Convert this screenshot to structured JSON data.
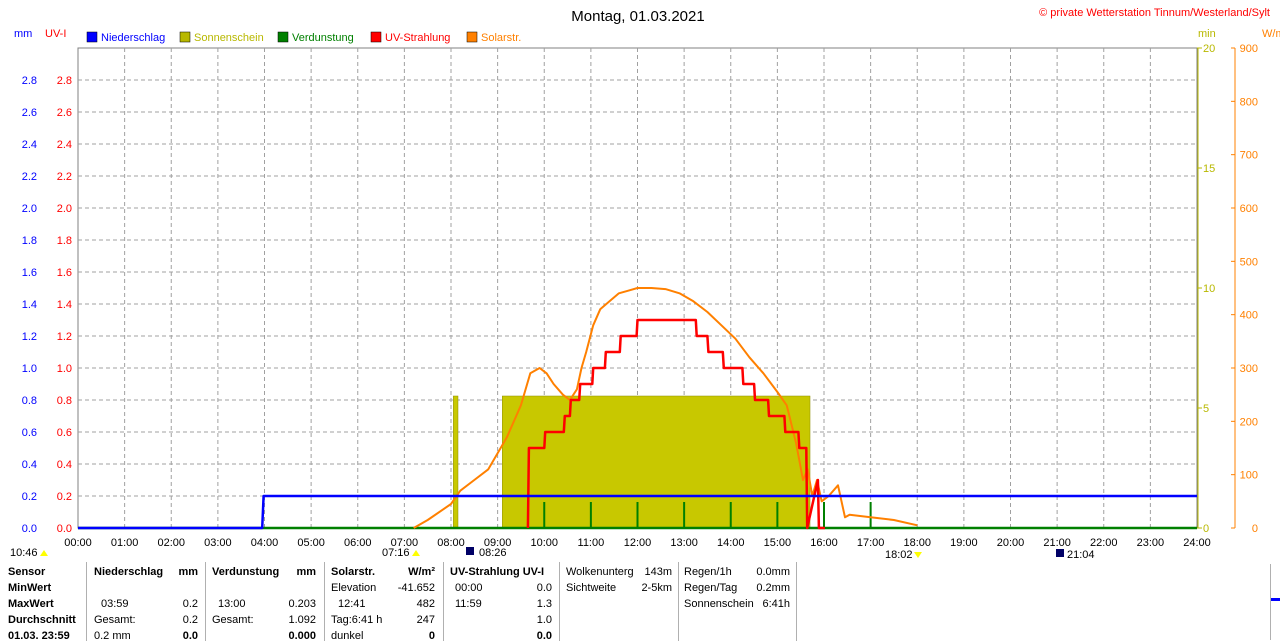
{
  "title": "Montag, 01.03.2021",
  "copyright": "© private Wetterstation Tinnum/Westerland/Sylt",
  "axis_units": {
    "mm": "mm",
    "uvi": "UV-I",
    "min": "min",
    "wm2": "W/m²"
  },
  "colors": {
    "blue": "#0000ff",
    "red": "#ff0000",
    "olive": "#b8b800",
    "orange": "#ff8000",
    "green": "#008000",
    "sun_fill": "#c8c800"
  },
  "chart_data": {
    "type": "line",
    "title": "Montag, 01.03.2021",
    "x_ticks": [
      "00:00",
      "01:00",
      "02:00",
      "03:00",
      "04:00",
      "05:00",
      "06:00",
      "07:00",
      "08:00",
      "09:00",
      "10:00",
      "11:00",
      "12:00",
      "13:00",
      "14:00",
      "15:00",
      "16:00",
      "17:00",
      "18:00",
      "19:00",
      "20:00",
      "21:00",
      "22:00",
      "23:00",
      "24:00"
    ],
    "xlim": [
      0,
      24
    ],
    "left_axis": {
      "label_mm": "mm",
      "label_uvi": "UV-I",
      "ylim": [
        0,
        3.0
      ],
      "ticks": [
        "0.0",
        "0.2",
        "0.4",
        "0.6",
        "0.8",
        "1.0",
        "1.2",
        "1.4",
        "1.6",
        "1.8",
        "2.0",
        "2.2",
        "2.4",
        "2.6",
        "2.8"
      ]
    },
    "right_axis_min": {
      "label": "min",
      "ylim": [
        0,
        20
      ],
      "ticks": [
        "0",
        "5",
        "10",
        "15",
        "20"
      ]
    },
    "right_axis_wm2": {
      "label": "W/m²",
      "ylim": [
        0,
        900
      ],
      "ticks": [
        "0",
        "100",
        "200",
        "300",
        "400",
        "500",
        "600",
        "700",
        "800",
        "900"
      ]
    },
    "legend": [
      "Niederschlag",
      "Sonnenschein",
      "Verdunstung",
      "UV-Strahlung",
      "Solarstr."
    ],
    "series": [
      {
        "name": "Niederschlag",
        "axis": "mm",
        "x": [
          0,
          3.95,
          3.98,
          24
        ],
        "y": [
          0,
          0,
          0.2,
          0.2
        ]
      },
      {
        "name": "UV-Strahlung",
        "axis": "uvi",
        "x": [
          9.65,
          9.67,
          10.0,
          10.02,
          10.42,
          10.44,
          10.55,
          10.57,
          10.75,
          10.77,
          11.03,
          11.05,
          11.3,
          11.32,
          11.62,
          11.64,
          11.98,
          12.0,
          13.25,
          13.27,
          13.5,
          13.52,
          13.83,
          13.85,
          14.25,
          14.27,
          14.5,
          14.52,
          14.8,
          14.82,
          15.15,
          15.17,
          15.45,
          15.47,
          15.62,
          15.64,
          15.87,
          15.89,
          16.0,
          16.02
        ],
        "y": [
          0,
          0.5,
          0.5,
          0.6,
          0.6,
          0.7,
          0.7,
          0.8,
          0.8,
          0.9,
          0.9,
          1.0,
          1.0,
          1.1,
          1.1,
          1.2,
          1.2,
          1.3,
          1.3,
          1.2,
          1.2,
          1.1,
          1.1,
          1.0,
          1.0,
          0.9,
          0.9,
          0.8,
          0.8,
          0.7,
          0.7,
          0.6,
          0.6,
          0.5,
          0.5,
          0.0,
          0.3,
          0.0,
          0.0,
          0.0
        ]
      },
      {
        "name": "Solarstr.",
        "axis": "wm2",
        "x": [
          7.2,
          7.5,
          8.0,
          8.2,
          8.5,
          8.8,
          9.0,
          9.2,
          9.5,
          9.7,
          9.9,
          10.05,
          10.2,
          10.4,
          10.55,
          10.7,
          10.8,
          10.9,
          11.05,
          11.2,
          11.4,
          11.6,
          11.8,
          12.0,
          12.3,
          12.6,
          12.9,
          13.2,
          13.5,
          13.8,
          14.1,
          14.4,
          14.7,
          15.0,
          15.2,
          15.4,
          15.55,
          15.65,
          15.75,
          15.85,
          15.95,
          16.1,
          16.3,
          16.45,
          16.55,
          17.0,
          17.5,
          18.0
        ],
        "y": [
          0,
          15,
          45,
          70,
          90,
          110,
          140,
          170,
          230,
          290,
          300,
          290,
          270,
          250,
          240,
          260,
          300,
          330,
          380,
          410,
          425,
          440,
          445,
          450,
          450,
          448,
          440,
          425,
          405,
          380,
          355,
          320,
          290,
          255,
          230,
          160,
          90,
          110,
          60,
          90,
          50,
          60,
          80,
          20,
          25,
          20,
          15,
          5
        ]
      },
      {
        "name": "Verdunstung",
        "axis": "mm",
        "x": [
          0,
          24
        ],
        "y": [
          0,
          0
        ]
      }
    ],
    "sunshine_bars": [
      {
        "x0": 8.05,
        "x1": 8.15,
        "min": 5.5
      },
      {
        "x0": 9.1,
        "x1": 15.7,
        "min": 5.5
      }
    ],
    "sunshine_tick_hours": [
      10.0,
      11.0,
      12.0,
      13.0,
      14.0,
      15.0,
      16.0,
      17.0
    ],
    "time_markers": [
      {
        "label": "10:46",
        "hour": 0
      },
      {
        "label": "07:16",
        "hour": 7.27
      },
      {
        "label": "08:26",
        "hour": 8.43
      },
      {
        "label": "18:02",
        "hour": 18.03
      },
      {
        "label": "21:04",
        "hour": 21.07
      }
    ]
  },
  "stats": {
    "c1": {
      "r1": "Sensor",
      "r2": "MinWert",
      "r3": "MaxWert",
      "r5": "Durchschnitt",
      "r6": "01.03. 23:59"
    },
    "c2": {
      "h": "Niederschlag",
      "u": "mm",
      "max_time": "03:59",
      "max_val": "0.2",
      "sum_label": "Gesamt:",
      "sum_val": "0.2",
      "avg_l": "0.2 mm",
      "avg_r": "0.0"
    },
    "c3": {
      "h": "Verdunstung",
      "u": "mm",
      "max_time": "13:00",
      "max_val": "0.203",
      "sum_label": "Gesamt:",
      "sum_val": "1.092",
      "avg_r": "0.000"
    },
    "c4": {
      "h": "Solarstr.",
      "u": "W/m²",
      "elev_l": "Elevation",
      "elev_v": "-41.652",
      "max_time": "12:41",
      "max_val": "482",
      "tag_l": "Tag:6:41 h",
      "tag_v": "247",
      "dark_l": "dunkel",
      "dark_v": "0"
    },
    "c5": {
      "h": "UV-Strahlung UV-I",
      "min_time": "00:00",
      "min_val": "0.0",
      "max_time": "11:59",
      "max_val": "1.3",
      "avg_val": "1.0",
      "last_val": "0.0"
    },
    "c6": {
      "l1": "Wolkenunterg",
      "v1": "143m",
      "l2": "Sichtweite",
      "v2": "2-5km"
    },
    "c7": {
      "l1": "Regen/1h",
      "v1": "0.0mm",
      "l2": "Regen/Tag",
      "v2": "0.2mm",
      "l3": "Sonnenschein",
      "v3": "6:41h"
    }
  }
}
